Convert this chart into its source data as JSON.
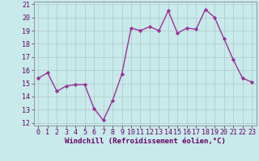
{
  "x": [
    0,
    1,
    2,
    3,
    4,
    5,
    6,
    7,
    8,
    9,
    10,
    11,
    12,
    13,
    14,
    15,
    16,
    17,
    18,
    19,
    20,
    21,
    22,
    23
  ],
  "y": [
    15.4,
    15.8,
    14.4,
    14.8,
    14.9,
    14.9,
    13.1,
    12.2,
    13.7,
    15.7,
    19.2,
    19.0,
    19.3,
    19.0,
    20.5,
    18.8,
    19.2,
    19.1,
    20.6,
    20.0,
    18.4,
    16.8,
    15.4,
    15.1
  ],
  "line_color": "#993399",
  "marker": "D",
  "markersize": 2.2,
  "xlabel": "Windchill (Refroidissement éolien,°C)",
  "xlim": [
    -0.5,
    23.5
  ],
  "ylim": [
    11.8,
    21.2
  ],
  "yticks": [
    12,
    13,
    14,
    15,
    16,
    17,
    18,
    19,
    20,
    21
  ],
  "xticks": [
    0,
    1,
    2,
    3,
    4,
    5,
    6,
    7,
    8,
    9,
    10,
    11,
    12,
    13,
    14,
    15,
    16,
    17,
    18,
    19,
    20,
    21,
    22,
    23
  ],
  "bg_color": "#c8eaea",
  "grid_color": "#b0c8c8",
  "tick_color": "#660066",
  "label_color": "#660066",
  "axis_color": "#888888",
  "xlabel_fontsize": 6.5,
  "tick_fontsize": 6.0,
  "linewidth": 1.0
}
